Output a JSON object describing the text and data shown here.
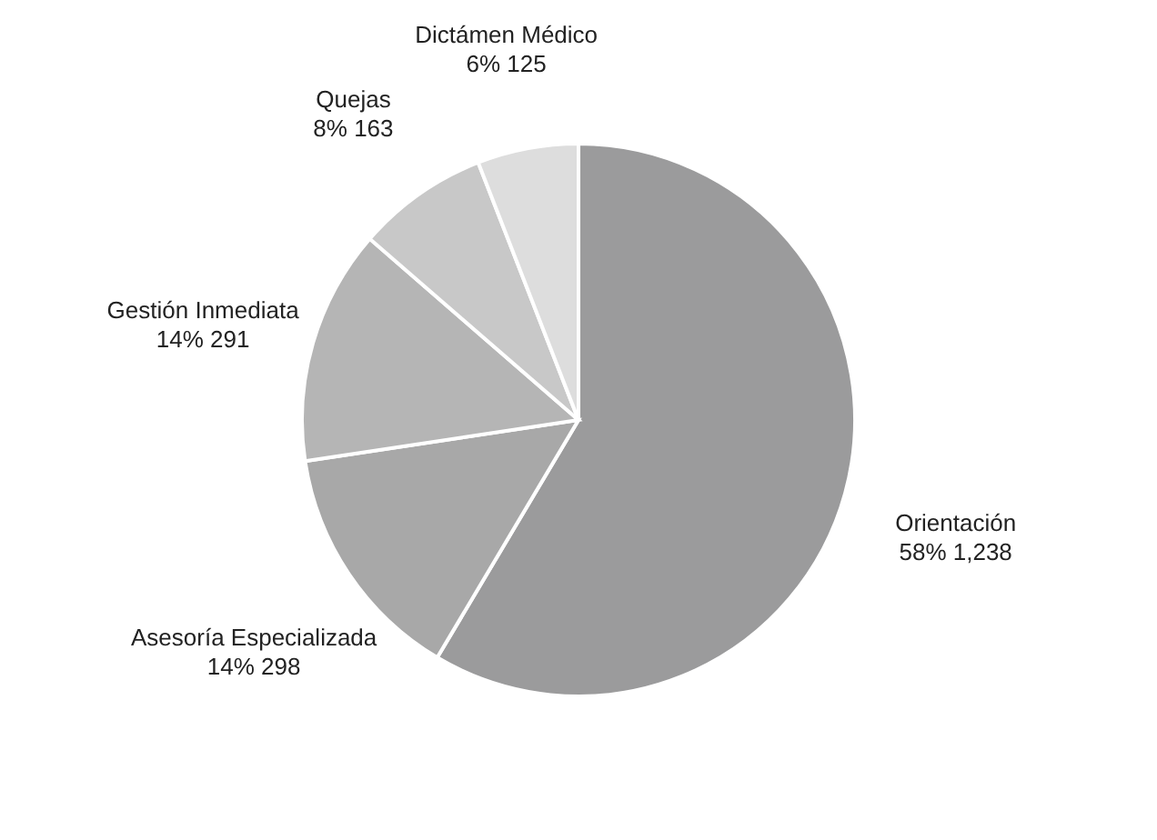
{
  "chart_data": {
    "type": "pie",
    "categories": [
      "Orientación",
      "Asesoría Especializada",
      "Gestión Inmediata",
      "Quejas",
      "Dictámen Médico"
    ],
    "values": [
      1238,
      298,
      291,
      163,
      125
    ],
    "value_labels": [
      "58% 1,238",
      "14% 298",
      "14% 291",
      "8% 163",
      "6% 125"
    ],
    "colors": [
      "#9b9b9c",
      "#a8a8a8",
      "#b5b5b5",
      "#c8c8c8",
      "#dddddd"
    ]
  }
}
